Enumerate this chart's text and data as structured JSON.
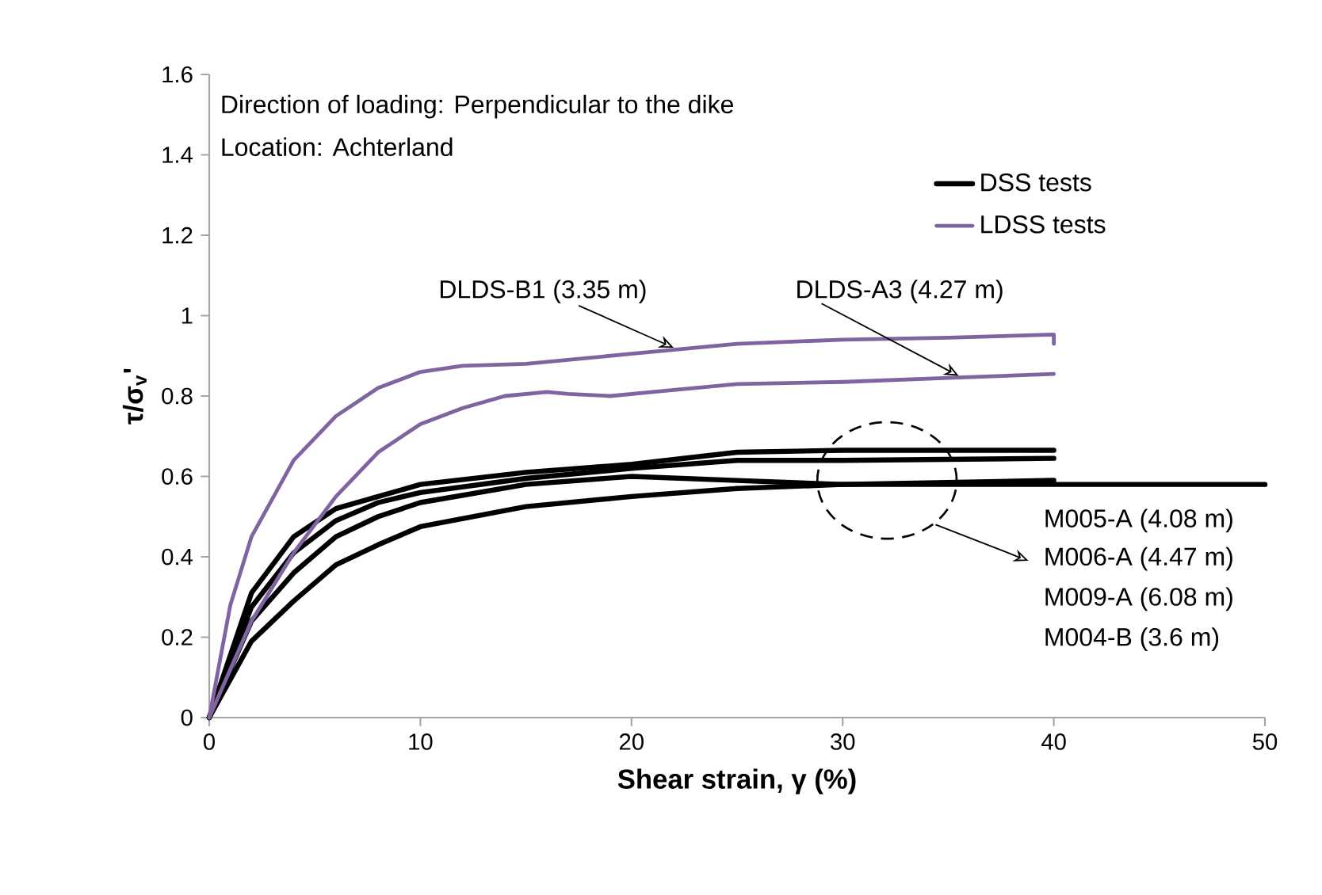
{
  "chart_data": {
    "type": "line",
    "xlabel": "Shear strain,  γ  (%)",
    "ylabel": "τ/σ$_{v}$'",
    "xlim": [
      0,
      50
    ],
    "ylim": [
      0,
      1.6
    ],
    "xticks": [
      0,
      10,
      20,
      30,
      40,
      50
    ],
    "yticks": [
      0,
      0.2,
      0.4,
      0.6,
      0.8,
      1,
      1.2,
      1.4,
      1.6
    ],
    "grid": false,
    "legend": "top right",
    "marker": "none",
    "line_style": "solid",
    "series": [
      {
        "name": "DSS tests",
        "color": "#000000",
        "x": [
          0,
          2,
          4,
          6,
          8,
          10,
          15,
          20,
          25,
          30,
          40
        ],
        "values": [
          0,
          0.31,
          0.45,
          0.52,
          0.55,
          0.58,
          0.61,
          0.63,
          0.66,
          0.665,
          0.665
        ]
      },
      {
        "color": "#000000",
        "x": [
          0,
          2,
          4,
          6,
          8,
          10,
          15,
          20,
          25,
          30,
          40
        ],
        "values": [
          0,
          0.275,
          0.41,
          0.49,
          0.535,
          0.56,
          0.595,
          0.62,
          0.64,
          0.64,
          0.645
        ]
      },
      {
        "color": "#000000",
        "x": [
          0,
          2,
          4,
          6,
          8,
          10,
          15,
          20,
          25,
          30,
          40,
          50
        ],
        "values": [
          0,
          0.24,
          0.36,
          0.45,
          0.5,
          0.535,
          0.58,
          0.6,
          0.59,
          0.58,
          0.58,
          0.58
        ]
      },
      {
        "color": "#000000",
        "x": [
          0,
          2,
          4,
          6,
          8,
          10,
          15,
          20,
          25,
          30,
          40
        ],
        "values": [
          0,
          0.19,
          0.29,
          0.38,
          0.43,
          0.475,
          0.525,
          0.55,
          0.57,
          0.58,
          0.59
        ]
      },
      {
        "name": "LDSS tests",
        "color": "#8064a2",
        "x": [
          0,
          1,
          2,
          4,
          6,
          8,
          10,
          12,
          15,
          20,
          25,
          30,
          35,
          40,
          40
        ],
        "values": [
          0,
          0.28,
          0.45,
          0.64,
          0.75,
          0.82,
          0.86,
          0.875,
          0.88,
          0.905,
          0.93,
          0.94,
          0.945,
          0.953,
          0.93
        ]
      },
      {
        "color": "#8064a2",
        "x": [
          0,
          2,
          4,
          6,
          8,
          10,
          12,
          14,
          16,
          17,
          19,
          21,
          25,
          30,
          35,
          40
        ],
        "values": [
          0,
          0.24,
          0.41,
          0.55,
          0.66,
          0.73,
          0.77,
          0.8,
          0.81,
          0.805,
          0.8,
          0.81,
          0.83,
          0.835,
          0.845,
          0.855
        ]
      }
    ],
    "annotations": [
      "Direction of loading:  Perpendicular to the dike",
      "Location:  Achterland",
      {
        "text": "DLDS-B1 (3.35 m)",
        "x": 22,
        "y": 0.92
      },
      {
        "text": "DLDS-A3 (4.27 m)",
        "x": 35.5,
        "y": 0.85
      },
      "M005-A (4.08 m)",
      "M006-A (4.47 m)",
      "M009-A (6.08 m)",
      "M004-B (3.6 m)"
    ]
  }
}
